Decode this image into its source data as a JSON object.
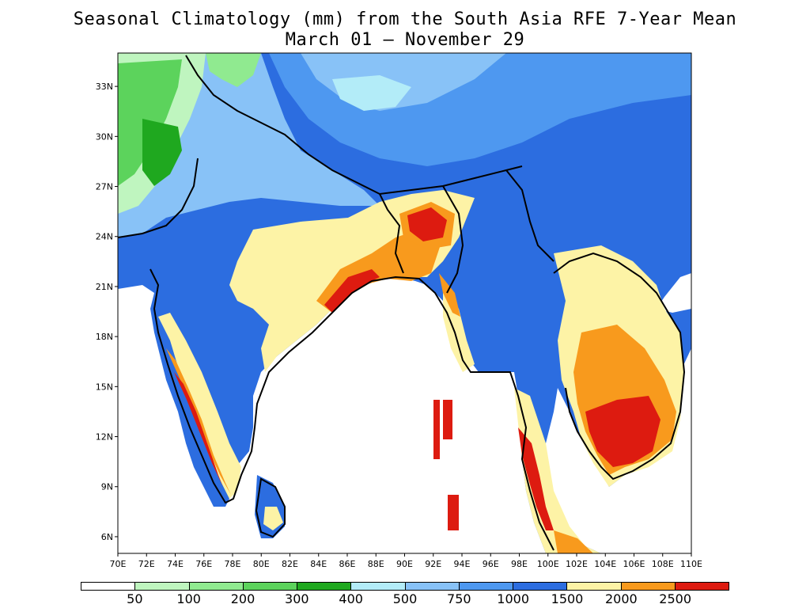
{
  "title": {
    "line1": "Seasonal Climatology (mm) from the South Asia RFE 7-Year Mean",
    "line2": "March 01 — November 29"
  },
  "map": {
    "lon_labels": [
      "70E",
      "72E",
      "74E",
      "76E",
      "78E",
      "80E",
      "82E",
      "84E",
      "86E",
      "88E",
      "90E",
      "92E",
      "94E",
      "96E",
      "98E",
      "100E",
      "102E",
      "104E",
      "106E",
      "108E",
      "110E"
    ],
    "lat_labels": [
      "33N",
      "30N",
      "27N",
      "24N",
      "21N",
      "18N",
      "15N",
      "12N",
      "9N",
      "6N"
    ],
    "lon_range": [
      70,
      110
    ],
    "lat_range": [
      5,
      35
    ]
  },
  "legend": {
    "unit": "mm",
    "colors": [
      "#ffffff",
      "#bff5bf",
      "#90ea90",
      "#5cd35c",
      "#1fa81f",
      "#b3ecf8",
      "#88c2f7",
      "#4e98f0",
      "#2c6de0",
      "#fdf3a6",
      "#f89a1d",
      "#dd1b10"
    ],
    "labels": [
      "50",
      "100",
      "200",
      "300",
      "400",
      "500",
      "750",
      "1000",
      "1500",
      "2000",
      "2500"
    ]
  },
  "icons": {
    "coastline": "coastline-outline",
    "country-borders": "country-borders"
  }
}
